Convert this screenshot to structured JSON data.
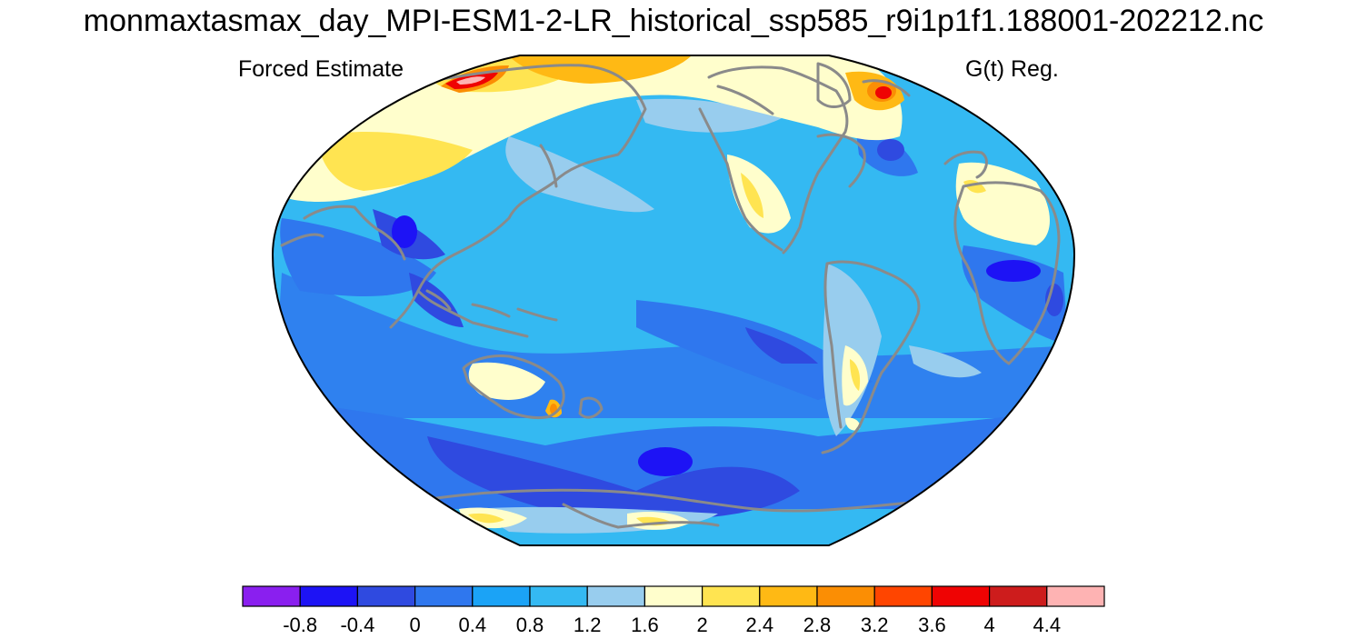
{
  "title": "monmaxtasmax_day_MPI-ESM1-2-LR_historical_ssp585_r9i1p1f1.188001-202212.nc",
  "left_label": "Forced Estimate",
  "right_label": "G(t) Reg.",
  "colorbar": {
    "colors": [
      "#8a1fef",
      "#1d13f5",
      "#2f4ae0",
      "#2f77ee",
      "#1ba3f6",
      "#34b9f2",
      "#98cdee",
      "#fffecc",
      "#ffe451",
      "#ffb914",
      "#fb8e04",
      "#ff4500",
      "#ef0303",
      "#cd1c1c",
      "#feb3b3"
    ],
    "tick_labels": [
      "-0.8",
      "-0.4",
      "0",
      "0.4",
      "0.8",
      "1.2",
      "1.6",
      "2",
      "2.4",
      "2.8",
      "3.2",
      "3.6",
      "4",
      "4.4"
    ]
  },
  "map_colors": {
    "ocean_base": "#34b9f2",
    "coast": "#8a8a8a",
    "outline": "#000000"
  }
}
